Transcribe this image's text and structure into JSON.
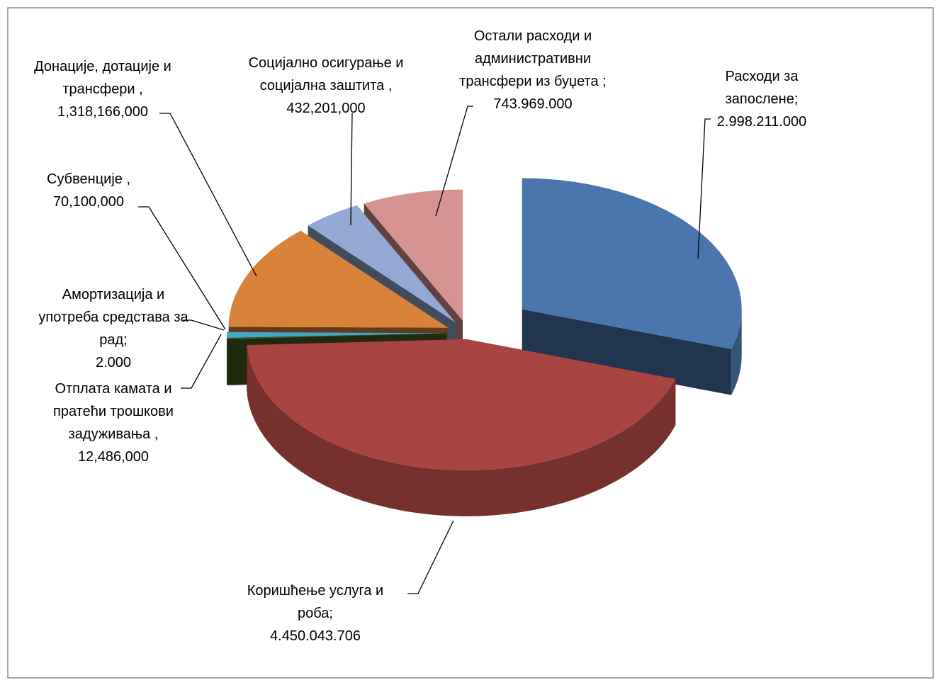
{
  "chart_data": {
    "type": "pie",
    "categories": [
      "Расходи за запослене;",
      "Коришћење услуга и роба;",
      "Отплата камата и пратећи трошкови задуживања ,",
      "Амортизација и употреба средстава за рад;",
      "Субвенције ,",
      "Донације, дотације и трансфери ,",
      "Социјално осигурање и социјална заштита ,",
      "Остали расходи и административни трансфери из буџета ;"
    ],
    "values": [
      2998211000,
      4450043706,
      12486000,
      2000,
      70100000,
      1318166000,
      432201000,
      743969000
    ],
    "value_labels": [
      "2.998.211.000",
      "4.450.043.706",
      "12,486,000",
      "2.000",
      "70,100,000",
      "1,318,166,000",
      "432,201,000",
      "743.969.000"
    ],
    "colors": [
      "#4a76ad",
      "#a84442",
      "#4a5e22",
      "#7a5a9a",
      "#46a7c4",
      "#d9823a",
      "#93a8d2",
      "#d59391"
    ]
  }
}
